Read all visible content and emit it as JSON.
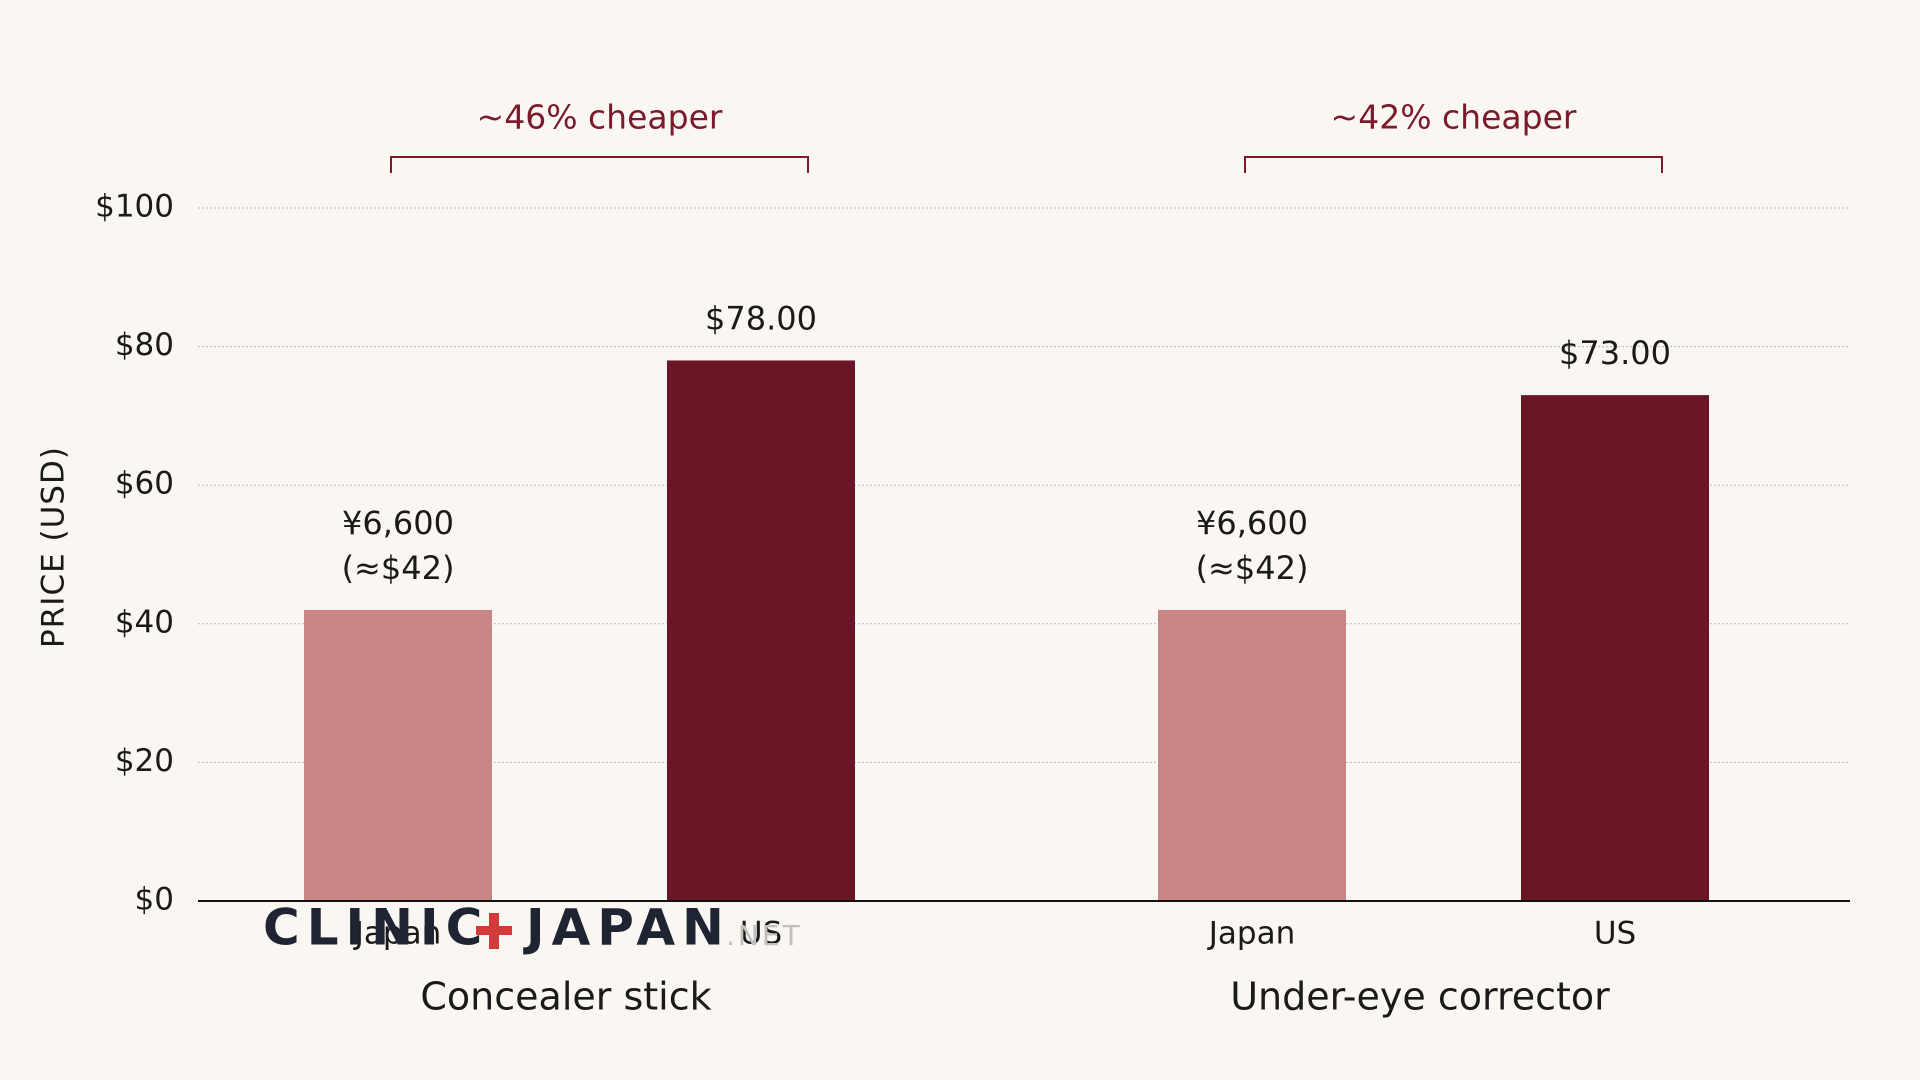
{
  "chart_data": {
    "type": "bar",
    "y_label": "PRICE (USD)",
    "categories": [
      "Concealer stick",
      "Under-eye corrector"
    ],
    "series": [
      {
        "name": "Japan",
        "color": "#c98585",
        "values": [
          42,
          42
        ],
        "value_labels": [
          [
            "¥6,600",
            "(≈$42)"
          ],
          [
            "¥6,600",
            "(≈$42)"
          ]
        ]
      },
      {
        "name": "US",
        "color": "#6a1626",
        "values": [
          78,
          73
        ],
        "value_labels": [
          [
            "$78.00"
          ],
          [
            "$73.00"
          ]
        ]
      }
    ],
    "annotations": [
      "~46% cheaper",
      "~42% cheaper"
    ],
    "annotation_color": "#7a1a2a",
    "ylim": [
      0,
      100
    ],
    "yticks": [
      {
        "value": 0,
        "label": "$0"
      },
      {
        "value": 20,
        "label": "$20"
      },
      {
        "value": 40,
        "label": "$40"
      },
      {
        "value": 60,
        "label": "$60"
      },
      {
        "value": 80,
        "label": "$80"
      },
      {
        "value": 100,
        "label": "$100"
      }
    ],
    "grid": true
  },
  "watermark": {
    "left": "CLINIC",
    "right": "JAPAN",
    "suffix": ".NET"
  }
}
